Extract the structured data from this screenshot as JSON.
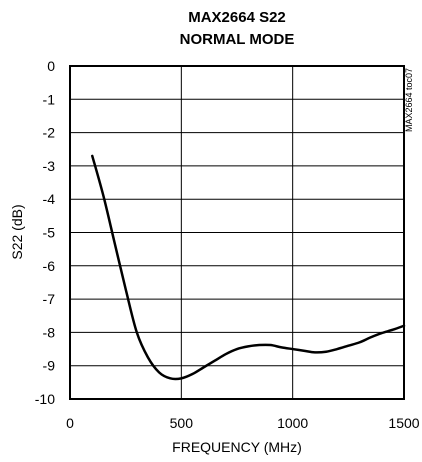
{
  "chart_data": {
    "type": "line",
    "title": "MAX2664 S22",
    "subtitle": "NORMAL MODE",
    "xlabel": "FREQUENCY (MHz)",
    "ylabel": "S22 (dB)",
    "xlim": [
      0,
      1500
    ],
    "ylim": [
      -10,
      0
    ],
    "x_ticks": [
      "0",
      "500",
      "1000",
      "1500"
    ],
    "y_ticks": [
      "0",
      "-1",
      "-2",
      "-3",
      "-4",
      "-5",
      "-6",
      "-7",
      "-8",
      "-9",
      "-10"
    ],
    "grid": true,
    "side_note": "MAX2664 toc07",
    "series": [
      {
        "x": [
          100,
          150,
          200,
          250,
          300,
          350,
          400,
          450,
          500,
          550,
          600,
          650,
          700,
          750,
          800,
          850,
          900,
          950,
          1000,
          1050,
          1100,
          1150,
          1200,
          1250,
          1300,
          1350,
          1400,
          1450,
          1500
        ],
        "values": [
          -2.7,
          -3.9,
          -5.3,
          -6.7,
          -8.0,
          -8.75,
          -9.2,
          -9.38,
          -9.38,
          -9.25,
          -9.05,
          -8.85,
          -8.65,
          -8.5,
          -8.42,
          -8.38,
          -8.38,
          -8.45,
          -8.5,
          -8.55,
          -8.6,
          -8.58,
          -8.5,
          -8.4,
          -8.3,
          -8.15,
          -8.02,
          -7.92,
          -7.8
        ]
      }
    ]
  }
}
